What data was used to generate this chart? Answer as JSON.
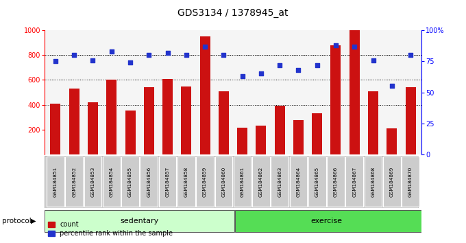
{
  "title": "GDS3134 / 1378945_at",
  "samples": [
    "GSM184851",
    "GSM184852",
    "GSM184853",
    "GSM184854",
    "GSM184855",
    "GSM184856",
    "GSM184857",
    "GSM184858",
    "GSM184859",
    "GSM184860",
    "GSM184861",
    "GSM184862",
    "GSM184863",
    "GSM184864",
    "GSM184865",
    "GSM184866",
    "GSM184867",
    "GSM184868",
    "GSM184869",
    "GSM184870"
  ],
  "counts": [
    410,
    530,
    420,
    600,
    355,
    540,
    610,
    545,
    950,
    510,
    215,
    230,
    390,
    275,
    330,
    880,
    1000,
    510,
    210,
    540
  ],
  "percentiles": [
    75,
    80,
    76,
    83,
    74,
    80,
    82,
    80,
    87,
    80,
    63,
    65,
    72,
    68,
    72,
    88,
    87,
    76,
    55,
    80
  ],
  "bar_color": "#cc1111",
  "dot_color": "#2233cc",
  "ylim_left": [
    0,
    1000
  ],
  "ylim_right": [
    0,
    100
  ],
  "yticks_left": [
    200,
    400,
    600,
    800,
    1000
  ],
  "yticks_right": [
    0,
    25,
    50,
    75,
    100
  ],
  "grid_lines": [
    400,
    600,
    800
  ],
  "bg_plot": "#f5f5f5",
  "bg_label": "#cccccc",
  "sedentary_color": "#ccffcc",
  "exercise_color": "#55dd55",
  "sedentary_count": 10,
  "exercise_count": 10
}
